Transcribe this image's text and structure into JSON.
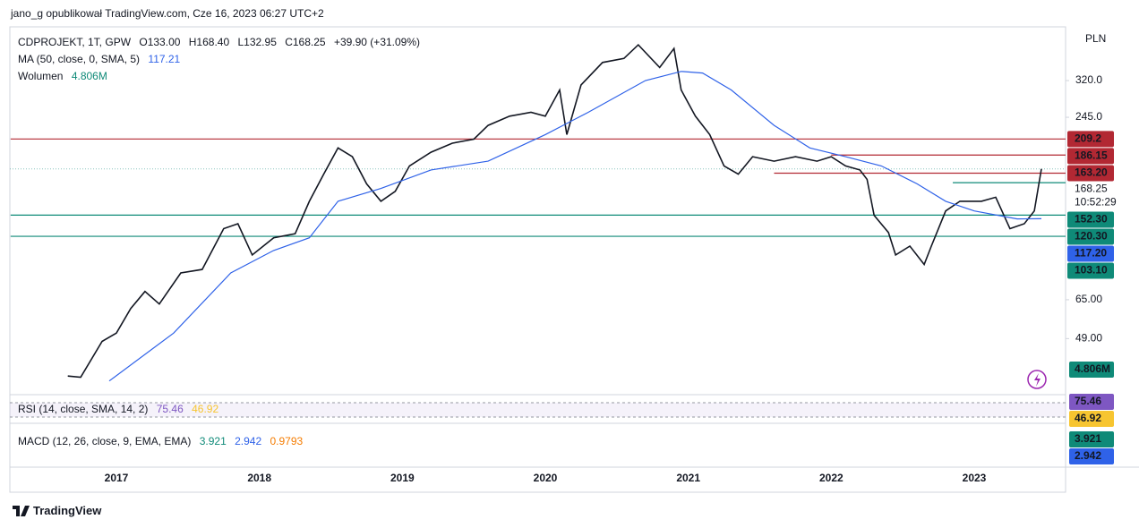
{
  "header": {
    "byline": "jano_g opublikował TradingView.com, Cze 16, 2023 06:27 UTC+2"
  },
  "legend": {
    "symbol": "CDPROJEKT, 1T, GPW",
    "open": "O133.00",
    "high": "H168.40",
    "low": "L132.95",
    "close": "C168.25",
    "change": "+39.90 (+31.09%)",
    "ma_label": "MA (50, close, 0, SMA, 5)",
    "ma_value": "117.21",
    "volume_label": "Wolumen",
    "volume_value": "4.806M",
    "rsi_label": "RSI (14, close, SMA, 14, 2)",
    "rsi_value": "75.46",
    "rsi_ma_value": "46.92",
    "macd_label": "MACD (12, 26, close, 9, EMA, EMA)",
    "macd_value": "3.921",
    "macd_signal": "2.942",
    "macd_hist": "0.9793"
  },
  "chart_data": {
    "type": "line",
    "currency": "PLN",
    "log_scale": true,
    "xlim": [
      2016.26,
      2023.64
    ],
    "xticks": [
      2017,
      2018,
      2019,
      2020,
      2021,
      2022,
      2023
    ],
    "ylim": [
      32.8,
      473
    ],
    "yticks": [
      {
        "value": 49,
        "label": "49.00"
      },
      {
        "value": 65,
        "label": "65.00"
      },
      {
        "value": 245,
        "label": "245.0"
      },
      {
        "value": 320,
        "label": "320.0"
      }
    ],
    "series": [
      {
        "name": "CDPROJEKT",
        "color": "#131722",
        "x": [
          2016.66,
          2016.75,
          2016.9,
          2017.0,
          2017.1,
          2017.2,
          2017.3,
          2017.45,
          2017.6,
          2017.75,
          2017.85,
          2017.95,
          2018.1,
          2018.25,
          2018.35,
          2018.45,
          2018.55,
          2018.65,
          2018.75,
          2018.85,
          2018.95,
          2019.05,
          2019.2,
          2019.35,
          2019.5,
          2019.6,
          2019.75,
          2019.9,
          2020.0,
          2020.1,
          2020.15,
          2020.25,
          2020.4,
          2020.55,
          2020.65,
          2020.8,
          2020.9,
          2020.95,
          2021.05,
          2021.15,
          2021.25,
          2021.35,
          2021.45,
          2021.6,
          2021.75,
          2021.9,
          2022.0,
          2022.1,
          2022.2,
          2022.25,
          2022.3,
          2022.4,
          2022.45,
          2022.55,
          2022.65,
          2022.7,
          2022.8,
          2022.9,
          2023.05,
          2023.15,
          2023.25,
          2023.35,
          2023.42,
          2023.47
        ],
        "values": [
          37.3,
          37,
          48,
          51,
          61,
          69,
          63,
          79,
          81,
          109,
          113,
          90,
          102,
          105,
          133,
          162,
          196,
          184,
          151,
          133,
          143,
          172,
          190,
          203,
          209,
          231,
          247,
          254,
          247,
          299,
          216,
          310,
          365,
          376,
          415,
          352,
          404,
          299,
          247,
          216,
          172,
          162,
          184,
          178,
          184,
          178,
          184,
          172,
          167,
          156,
          120,
          106,
          90,
          96,
          84,
          96,
          124,
          133,
          133,
          137,
          109,
          113,
          124,
          168.25
        ]
      },
      {
        "name": "MA",
        "color": "#2f62e8",
        "x": [
          2016.95,
          2017.4,
          2017.8,
          2018.1,
          2018.35,
          2018.55,
          2018.85,
          2019.2,
          2019.6,
          2020.0,
          2020.3,
          2020.7,
          2020.95,
          2021.1,
          2021.3,
          2021.6,
          2021.85,
          2022.1,
          2022.35,
          2022.6,
          2022.8,
          2023.0,
          2023.3,
          2023.47
        ],
        "values": [
          36,
          51,
          79,
          93,
          102,
          133,
          146,
          167,
          178,
          216,
          254,
          320,
          342,
          338,
          299,
          231,
          196,
          184,
          172,
          151,
          133,
          124,
          117,
          117.2
        ]
      }
    ],
    "last_price": {
      "value": 168.25,
      "label": "168.25"
    },
    "countdown": "10:52:29",
    "levels": [
      {
        "value": 209.2,
        "label": "209.2",
        "color": "#b22833",
        "from": 2016.26
      },
      {
        "value": 186.15,
        "label": "186.15",
        "color": "#b22833",
        "from": 2022.0
      },
      {
        "value": 163.2,
        "label": "163.20",
        "color": "#b22833",
        "from": 2021.6
      },
      {
        "value": 152.3,
        "label": "152.30",
        "color": "#0f8a78",
        "from": 2022.85
      },
      {
        "value": 120.3,
        "label": "120.30",
        "color": "#0f8a78",
        "from": 2016.26
      },
      {
        "value": 117.2,
        "label": "117.20",
        "color": "#2f62e8",
        "from": null
      },
      {
        "value": 103.1,
        "label": "103.10",
        "color": "#0f8a78",
        "from": 2016.26
      }
    ],
    "pane_badges": [
      {
        "label": "4.806M",
        "color": "#0f8a78"
      },
      {
        "label": "75.46",
        "color": "#7e57c2"
      },
      {
        "label": "46.92",
        "color": "#f7c530"
      },
      {
        "label": "3.921",
        "color": "#0f8a78"
      },
      {
        "label": "2.942",
        "color": "#2f62e8"
      }
    ]
  },
  "footer": {
    "brand": "TradingView"
  }
}
